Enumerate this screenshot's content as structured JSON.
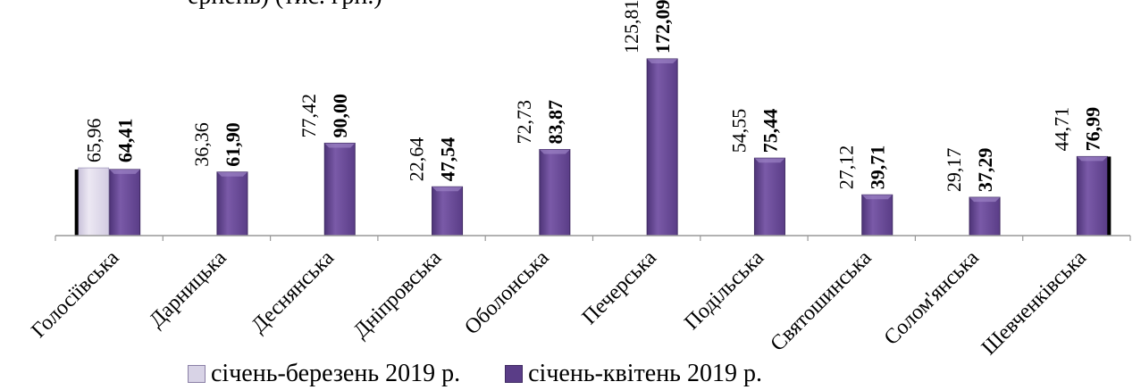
{
  "header_fragment": "ерпень) (тис. грн.)",
  "chart_data": {
    "type": "bar",
    "categories": [
      "Голосіївська",
      "Дарницька",
      "Деснянська",
      "Дніпровська",
      "Оболонська",
      "Печерська",
      "Подільська",
      "Святошинська",
      "Солом'янська",
      "Шевченківська"
    ],
    "series": [
      {
        "name": "січень-березень 2019 р.",
        "values": [
          65.96,
          36.36,
          77.42,
          22.64,
          72.73,
          125.81,
          54.55,
          27.12,
          29.17,
          44.71
        ],
        "value_labels": [
          "65,96",
          "36,36",
          "77,42",
          "22,64",
          "72,73",
          "125,81",
          "54,55",
          "27,12",
          "29,17",
          "44,71"
        ],
        "visible_bars": [
          true,
          false,
          false,
          false,
          false,
          false,
          false,
          false,
          false,
          false
        ]
      },
      {
        "name": "січень-квітень 2019 р.",
        "values": [
          64.41,
          61.9,
          90.0,
          47.54,
          83.87,
          172.09,
          75.44,
          39.71,
          37.29,
          76.99
        ],
        "value_labels": [
          "64,41",
          "61,90",
          "90,00",
          "47,54",
          "83,87",
          "172,09",
          "75,44",
          "39,71",
          "37,29",
          "76,99"
        ],
        "visible_bars": [
          true,
          true,
          true,
          true,
          true,
          true,
          true,
          true,
          true,
          true
        ]
      }
    ],
    "legend_position": "bottom",
    "grid": false,
    "ylim": [
      0,
      172.09
    ],
    "colors": {
      "series1": "#d8d3e6",
      "series2": "#6f4c9b",
      "series2_dark": "#3f2a62",
      "axis": "#999999"
    }
  },
  "legend": {
    "items": [
      {
        "label": "січень-березень 2019 р.",
        "icon": "light-lavender-square"
      },
      {
        "label": "січень-квітень 2019 р.",
        "icon": "purple-square"
      }
    ]
  }
}
